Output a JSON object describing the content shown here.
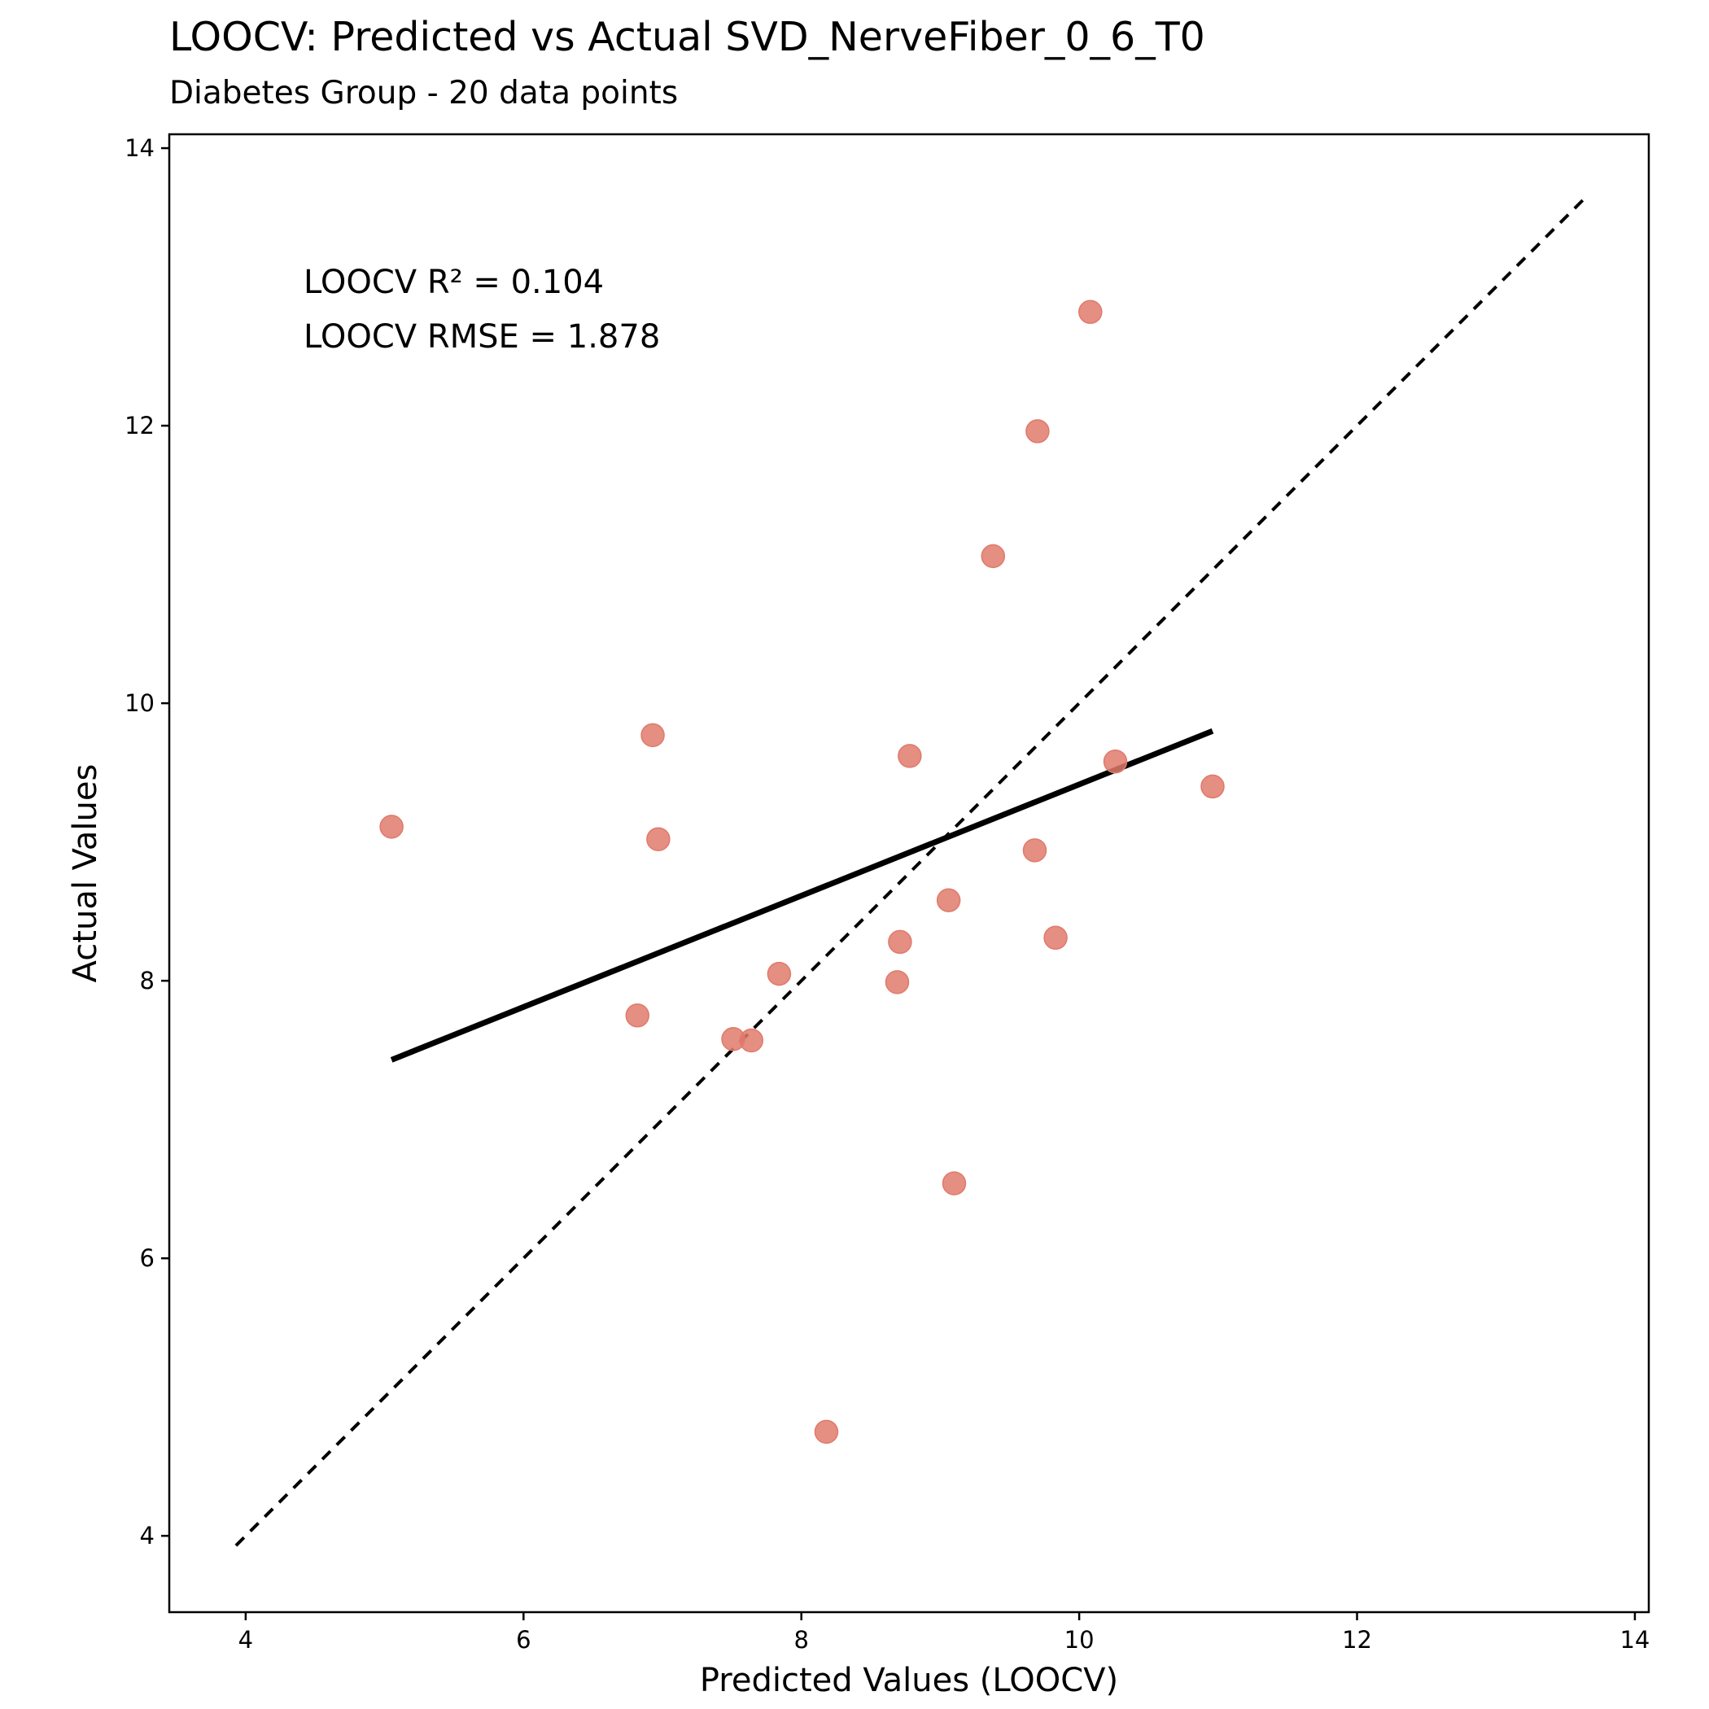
{
  "chart_data": {
    "type": "scatter",
    "title": "LOOCV: Predicted vs Actual SVD_NerveFiber_0_6_T0",
    "subtitle": "Diabetes Group - 20 data points",
    "xlabel": "Predicted Values (LOOCV)",
    "ylabel": "Actual Values",
    "xlim": [
      3.45,
      14.1
    ],
    "ylim": [
      3.45,
      14.1
    ],
    "xticks": [
      4,
      6,
      8,
      10,
      12,
      14
    ],
    "yticks": [
      4,
      6,
      8,
      10,
      12,
      14
    ],
    "xtick_labels": [
      "4",
      "6",
      "8",
      "10",
      "12",
      "14"
    ],
    "ytick_labels": [
      "4",
      "6",
      "8",
      "10",
      "12",
      "14"
    ],
    "grid": false,
    "point_color": "#E07A6C",
    "points": {
      "x": [
        5.05,
        6.93,
        6.97,
        6.82,
        7.51,
        7.64,
        7.84,
        8.18,
        8.69,
        8.71,
        8.78,
        9.06,
        9.1,
        9.38,
        9.68,
        9.7,
        9.83,
        10.08,
        10.26,
        10.96
      ],
      "y": [
        9.11,
        9.77,
        9.02,
        7.75,
        7.58,
        7.57,
        8.05,
        4.75,
        7.99,
        8.28,
        9.62,
        8.58,
        6.54,
        11.06,
        8.94,
        11.96,
        8.31,
        12.82,
        9.58,
        9.4
      ]
    },
    "regression_line": {
      "x": [
        5.05,
        10.96
      ],
      "y": [
        7.43,
        9.8
      ],
      "style": "solid",
      "color": "#000000"
    },
    "identity_line": {
      "x": [
        3.93,
        13.64
      ],
      "y": [
        3.93,
        13.64
      ],
      "style": "dashed",
      "color": "#000000"
    },
    "annotations": [
      "LOOCV R² = 0.104",
      "LOOCV RMSE = 1.878"
    ]
  }
}
